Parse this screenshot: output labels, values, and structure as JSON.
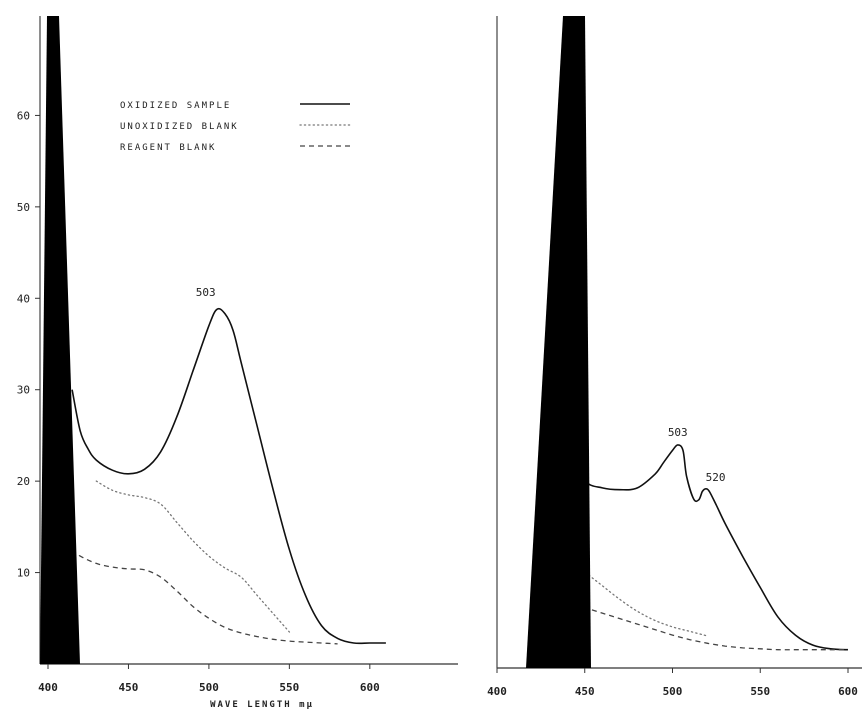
{
  "chart_data": [
    {
      "type": "line",
      "title": "",
      "xlabel": "WAVE LENGTH mμ",
      "ylabel": "",
      "xlim": [
        400,
        620
      ],
      "ylim": [
        0,
        70
      ],
      "x_ticks": [
        400,
        450,
        500,
        550,
        600
      ],
      "x_tick_labels": [
        "400",
        "450",
        "500",
        "550",
        "600"
      ],
      "y_ticks": [
        10,
        20,
        30,
        40,
        50,
        60
      ],
      "y_tick_labels": [
        "10",
        "20",
        "30",
        "40",
        "50",
        "60"
      ],
      "grid": false,
      "legend": {
        "placement": "top-left",
        "entries": [
          "OXIDIZED SAMPLE",
          "UNOXIDIZED BLANK",
          "REAGENT BLANK"
        ]
      },
      "annotations": [
        {
          "text": "503",
          "x": 503,
          "y": 39.4
        }
      ],
      "series": [
        {
          "name": "OXIDIZED SAMPLE",
          "style": "solid",
          "x": [
            415,
            420,
            425,
            430,
            440,
            450,
            460,
            470,
            480,
            490,
            500,
            505,
            510,
            515,
            520,
            530,
            540,
            550,
            560,
            570,
            580,
            590,
            600,
            610
          ],
          "y": [
            30,
            25.5,
            23.5,
            22.3,
            21.2,
            20.8,
            21.3,
            23.2,
            27,
            32,
            37,
            38.8,
            38.3,
            36.5,
            33,
            26,
            19,
            12.5,
            7.5,
            4.2,
            2.8,
            2.3,
            2.3,
            2.3
          ]
        },
        {
          "name": "UNOXIDIZED BLANK",
          "style": "dotted",
          "x": [
            430,
            440,
            450,
            460,
            470,
            480,
            490,
            500,
            510,
            520,
            530,
            540,
            550
          ],
          "y": [
            20,
            19,
            18.5,
            18.2,
            17.5,
            15.5,
            13.5,
            11.8,
            10.5,
            9.5,
            7.5,
            5.5,
            3.5
          ]
        },
        {
          "name": "REAGENT BLANK",
          "style": "dashed",
          "x": [
            415,
            420,
            430,
            440,
            450,
            460,
            470,
            480,
            490,
            500,
            510,
            520,
            530,
            540,
            550,
            560,
            570,
            580
          ],
          "y": [
            12.5,
            11.8,
            11,
            10.6,
            10.4,
            10.3,
            9.5,
            8,
            6.3,
            5,
            4,
            3.4,
            3,
            2.7,
            2.5,
            2.4,
            2.3,
            2.2
          ]
        }
      ]
    },
    {
      "type": "line",
      "title": "",
      "xlabel": "",
      "ylabel": "",
      "xlim": [
        400,
        600
      ],
      "ylim": [
        0,
        70
      ],
      "x_ticks": [
        400,
        450,
        500,
        550,
        600
      ],
      "x_tick_labels": [
        "400",
        "450",
        "500",
        "550",
        "600"
      ],
      "grid": false,
      "annotations": [
        {
          "text": "503",
          "x": 503,
          "y": 24.5
        },
        {
          "text": "520",
          "x": 520,
          "y": 19.6
        }
      ],
      "series": [
        {
          "style": "solid",
          "x": [
            430,
            433,
            440,
            450,
            460,
            470,
            480,
            490,
            495,
            500,
            503,
            506,
            508,
            512,
            515,
            517,
            519,
            521,
            525,
            530,
            540,
            550,
            560,
            570,
            580,
            590,
            600
          ],
          "y": [
            38,
            31.5,
            24,
            20.5,
            19.7,
            19.5,
            19.7,
            21.2,
            22.5,
            23.8,
            24.4,
            23.8,
            21,
            18.5,
            18.4,
            19.3,
            19.6,
            19.3,
            17.8,
            15.8,
            12.2,
            8.8,
            5.6,
            3.6,
            2.5,
            2.1,
            2
          ]
        },
        {
          "style": "dotted",
          "x": [
            430,
            440,
            450,
            460,
            470,
            480,
            490,
            500,
            510,
            520
          ],
          "y": [
            14,
            12,
            10.5,
            9,
            7.5,
            6.2,
            5.2,
            4.5,
            4,
            3.5
          ]
        },
        {
          "style": "dashed",
          "x": [
            430,
            440,
            450,
            460,
            470,
            480,
            490,
            500,
            510,
            520,
            530,
            540,
            550,
            560,
            570,
            580,
            590,
            600
          ],
          "y": [
            8,
            7.2,
            6.6,
            6,
            5.4,
            4.8,
            4.2,
            3.6,
            3.1,
            2.7,
            2.4,
            2.2,
            2.1,
            2,
            2,
            2,
            2,
            2
          ]
        }
      ]
    }
  ]
}
